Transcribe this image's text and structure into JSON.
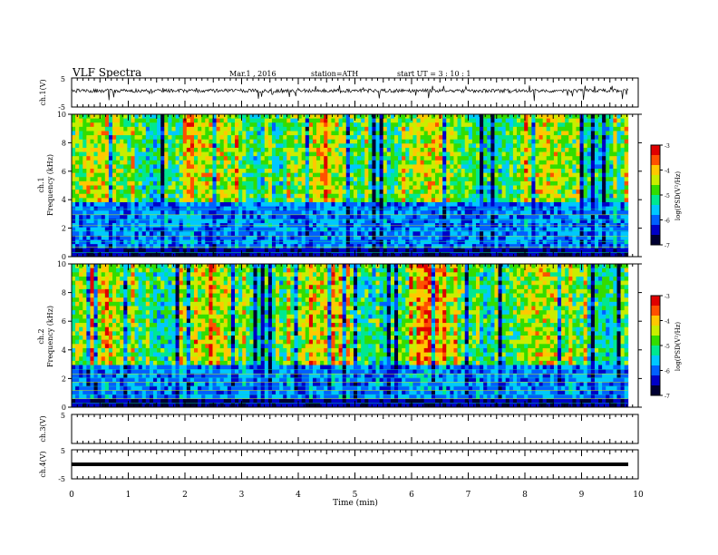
{
  "header": {
    "title": "VLF  Spectra",
    "date": "Mar.1  , 2016",
    "station": "station=ATH",
    "start": "start  UT =   3  : 10 : 1"
  },
  "chart_data": {
    "type": "heatmap",
    "x_axis": {
      "label": "Time  (min)",
      "range": [
        0,
        10
      ],
      "ticks": [
        "0",
        "1",
        "2",
        "3",
        "4",
        "5",
        "6",
        "7",
        "8",
        "9",
        "10"
      ],
      "data_end": 9.82
    },
    "panels": [
      {
        "id": "ch1-waveform",
        "kind": "line",
        "ylabel": "ch.1(V)",
        "ylim": [
          -5,
          5
        ],
        "yticks": [
          "5",
          "-5"
        ]
      },
      {
        "id": "ch1-spectrogram",
        "kind": "heatmap",
        "ylabel_line1": "ch.1",
        "ylabel_line2": "Frequency  (kHz)",
        "ylim": [
          0,
          10
        ],
        "yticks": [
          "0",
          "2",
          "4",
          "6",
          "8",
          "10"
        ],
        "colorbar": {
          "label": "log(PSD(V²/Hz)",
          "range": [
            -7,
            -3
          ],
          "ticks": [
            "-3",
            "-4",
            "-5",
            "-6",
            "-7"
          ]
        },
        "noise_floor_khz": 3.8
      },
      {
        "id": "ch2-spectrogram",
        "kind": "heatmap",
        "ylabel_line1": "ch.2",
        "ylabel_line2": "Frequency  (kHz)",
        "ylim": [
          0,
          10
        ],
        "yticks": [
          "0",
          "2",
          "4",
          "6",
          "8",
          "10"
        ],
        "colorbar": {
          "label": "log(PSD(V²/Hz)",
          "range": [
            -7,
            -3
          ],
          "ticks": [
            "-3",
            "-4",
            "-5",
            "-6",
            "-7"
          ]
        },
        "noise_floor_khz": 3.0
      },
      {
        "id": "ch3-waveform",
        "kind": "line",
        "ylabel": "ch.3(V)",
        "ylim": [
          -5,
          5
        ],
        "yticks": [
          "5"
        ]
      },
      {
        "id": "ch4-waveform",
        "kind": "line",
        "ylabel": "ch.4(V)",
        "ylim": [
          -5,
          5
        ],
        "yticks": [
          "5",
          "-5"
        ]
      }
    ],
    "colormap": [
      "#000033",
      "#0000c8",
      "#0060ff",
      "#00c8ff",
      "#00e890",
      "#33dd00",
      "#c8ee00",
      "#ffc800",
      "#ff5000",
      "#e00000",
      "#ffffff"
    ]
  }
}
